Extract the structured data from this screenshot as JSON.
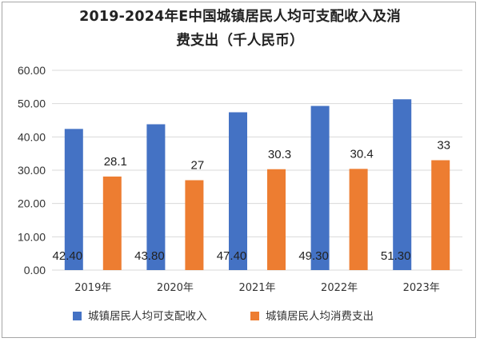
{
  "chart_data": {
    "type": "bar",
    "title_line1": "2019-2024年E中国城镇居民人均可支配收入及消",
    "title_line2": "费支出（千人民币）",
    "categories": [
      "2019年",
      "2020年",
      "2021年",
      "2022年",
      "2023年"
    ],
    "y_ticks": [
      "0.00",
      "10.00",
      "20.00",
      "30.00",
      "40.00",
      "50.00",
      "60.00"
    ],
    "ylim": [
      0,
      60
    ],
    "grid": true,
    "legend_position": "bottom",
    "series": [
      {
        "name": "城镇居民人均可支配收入",
        "color": "#4472c4",
        "values": [
          42.4,
          43.8,
          47.4,
          49.3,
          51.3
        ],
        "data_labels": [
          "42.40",
          "43.80",
          "47.40",
          "49.30",
          "51.30"
        ]
      },
      {
        "name": "城镇居民人均消费支出",
        "color": "#ed7d31",
        "values": [
          28.1,
          27,
          30.3,
          30.4,
          33
        ],
        "data_labels": [
          "28.1",
          "27",
          "30.3",
          "30.4",
          "33"
        ]
      }
    ]
  }
}
